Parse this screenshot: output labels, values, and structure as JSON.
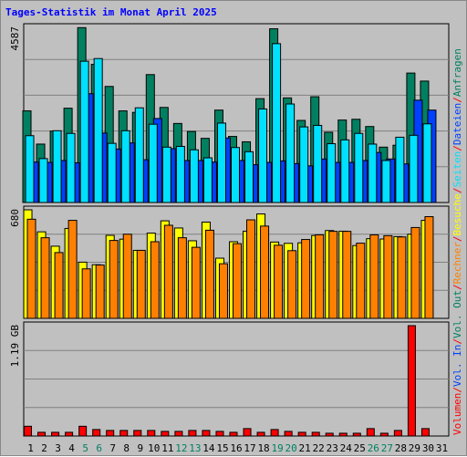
{
  "chart_data": {
    "title": "Tages-Statistik im Monat April 2025",
    "type": "bar",
    "days": [
      "1",
      "2",
      "3",
      "4",
      "5",
      "6",
      "7",
      "8",
      "9",
      "10",
      "11",
      "12",
      "13",
      "14",
      "15",
      "16",
      "17",
      "18",
      "19",
      "20",
      "21",
      "22",
      "23",
      "24",
      "25",
      "26",
      "27",
      "28",
      "29",
      "30",
      "31"
    ],
    "weekend_days": [
      "5",
      "6",
      "12",
      "13",
      "19",
      "20",
      "26",
      "27"
    ],
    "panels": [
      {
        "name": "hits",
        "ymax_label": "4587",
        "ymax": 4587,
        "series": [
          {
            "name": "Anfragen",
            "color": "#008060",
            "values": [
              2400,
              1530,
              1870,
              2470,
              4580,
              3620,
              3040,
              2400,
              2360,
              3350,
              2490,
              2070,
              1860,
              1680,
              2420,
              1730,
              1590,
              2720,
              4550,
              2740,
              2150,
              2770,
              1840,
              2160,
              2180,
              1990,
              1450,
              1500,
              3390,
              3180,
              null
            ]
          },
          {
            "name": "Dateien",
            "color": "#0040ff",
            "values": [
              1060,
              1050,
              1100,
              1040,
              2850,
              1820,
              1400,
              1560,
              1120,
              2200,
              1410,
              1100,
              1100,
              1060,
              1690,
              1100,
              990,
              1050,
              1090,
              1020,
              960,
              1140,
              1050,
              1050,
              1100,
              1310,
              1140,
              1010,
              2680,
              2420,
              null
            ]
          },
          {
            "name": "Seiten",
            "color": "#00e0ff",
            "values": [
              1750,
              1150,
              1880,
              1810,
              3700,
              3770,
              1550,
              1880,
              2480,
              2050,
              1450,
              1470,
              1380,
              1170,
              2080,
              1440,
              1330,
              2450,
              4160,
              2580,
              1980,
              2020,
              1540,
              1640,
              1810,
              1530,
              1100,
              1710,
              1760,
              2060,
              null
            ]
          }
        ]
      },
      {
        "name": "visits",
        "ymax_label": "680",
        "ymax": 680,
        "series": [
          {
            "name": "Besuche",
            "color": "#ffff00",
            "values": [
              680,
              542,
              452,
              563,
              352,
              336,
              520,
              496,
              426,
              534,
              611,
              566,
              486,
              603,
              377,
              480,
              546,
              654,
              478,
              470,
              473,
              519,
              550,
              546,
              456,
              499,
              497,
              512,
              527,
              614,
              null
            ]
          },
          {
            "name": "Rechner",
            "color": "#ff8000",
            "values": [
              621,
              505,
              412,
              614,
              310,
              334,
              488,
              527,
              426,
              480,
              583,
              505,
              445,
              552,
              342,
              468,
              617,
              578,
              458,
              424,
              494,
              523,
              545,
              545,
              471,
              523,
              518,
              510,
              569,
              637,
              null
            ]
          }
        ]
      },
      {
        "name": "volume",
        "ymax_label": "1.19 GB",
        "ymax": 1.19,
        "series": [
          {
            "name": "Volumen",
            "color": "#ff0000",
            "values": [
              0.105,
              0.04,
              0.04,
              0.04,
              0.105,
              0.07,
              0.06,
              0.06,
              0.06,
              0.06,
              0.05,
              0.05,
              0.06,
              0.06,
              0.05,
              0.04,
              0.08,
              0.04,
              0.07,
              0.05,
              0.04,
              0.04,
              0.03,
              0.03,
              0.03,
              0.08,
              0.03,
              0.06,
              1.19,
              0.08,
              null
            ]
          }
        ]
      }
    ],
    "legend": [
      "Volumen",
      "/",
      "Vol. In",
      "/",
      "Vol. Out",
      "/",
      "Rechner",
      "/",
      "Besuche",
      "/",
      "Seiten",
      "/",
      "Dateien",
      "/",
      "Anfragen"
    ],
    "legend_colors": [
      "#ff0000",
      "#ff0000",
      "#0040ff",
      "#ff0000",
      "#008060",
      "#ff0000",
      "#ff8000",
      "#ff0000",
      "#ffff00",
      "#ff0000",
      "#00e0ff",
      "#ff0000",
      "#0040ff",
      "#ff0000",
      "#008060"
    ],
    "colors": {
      "background": "#c0c0c0",
      "title": "#0000ff",
      "weekday_label": "#000000",
      "weekend_label": "#008060"
    }
  }
}
